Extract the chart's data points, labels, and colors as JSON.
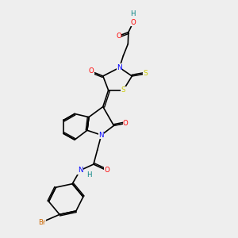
{
  "background_color": "#eeeeee",
  "atom_colors": {
    "C": "#000000",
    "H": "#008080",
    "N": "#0000ff",
    "O": "#ff0000",
    "S": "#cccc00",
    "Br": "#cc6600"
  },
  "bond_color": "#000000"
}
